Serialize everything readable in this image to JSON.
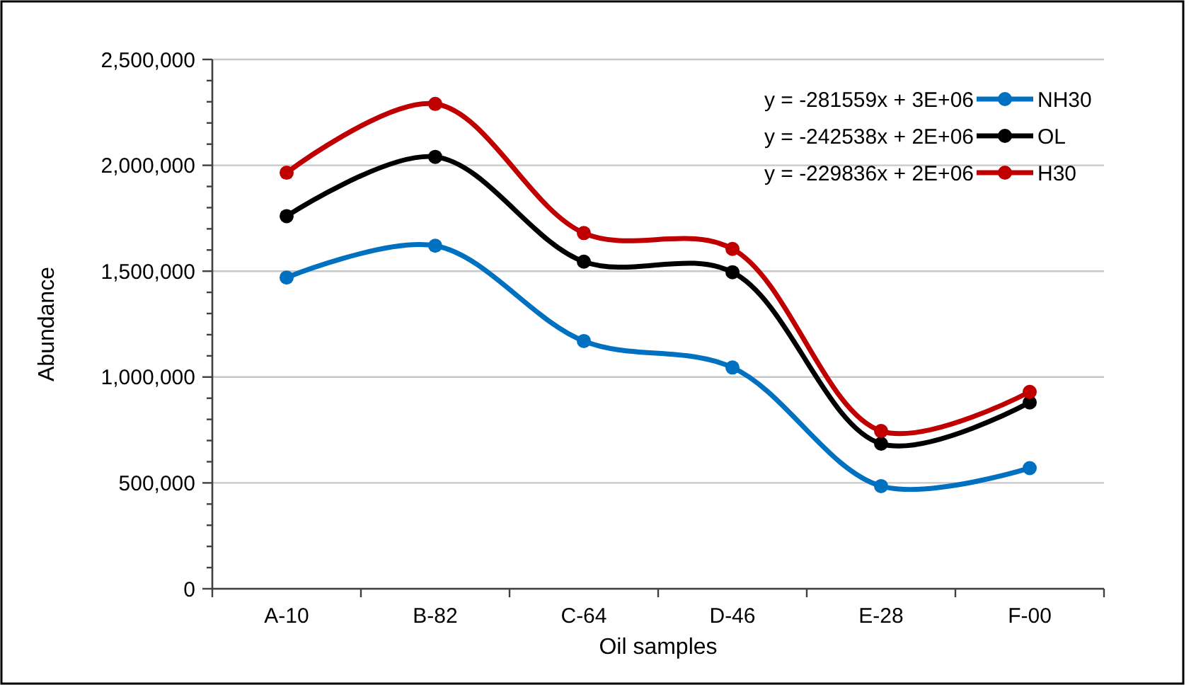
{
  "chart_data": {
    "type": "line",
    "xlabel": "Oil samples",
    "ylabel": "Abundance",
    "categories": [
      "A-10",
      "B-82",
      "C-64",
      "D-46",
      "E-28",
      "F-00"
    ],
    "series": [
      {
        "name": "NH30",
        "color": "#0070c0",
        "values": [
          1470000,
          1620000,
          1170000,
          1045000,
          485000,
          570000
        ]
      },
      {
        "name": "OL",
        "color": "#000000",
        "values": [
          1760000,
          2040000,
          1545000,
          1495000,
          685000,
          880000
        ]
      },
      {
        "name": "H30",
        "color": "#c00000",
        "values": [
          1965000,
          2290000,
          1680000,
          1605000,
          745000,
          930000
        ]
      }
    ],
    "annotations": [
      "y = -281559x + 3E+06",
      "y = -242538x + 2E+06",
      "y = -229836x + 2E+06"
    ],
    "ylim": [
      0,
      2500000
    ],
    "yticks": [
      {
        "value": 0,
        "label": "0"
      },
      {
        "value": 100000,
        "label": null
      },
      {
        "value": 200000,
        "label": null
      },
      {
        "value": 300000,
        "label": null
      },
      {
        "value": 400000,
        "label": null
      },
      {
        "value": 500000,
        "label": "500,000"
      },
      {
        "value": 600000,
        "label": null
      },
      {
        "value": 700000,
        "label": null
      },
      {
        "value": 800000,
        "label": null
      },
      {
        "value": 900000,
        "label": null
      },
      {
        "value": 1000000,
        "label": "1,000,000"
      },
      {
        "value": 1100000,
        "label": null
      },
      {
        "value": 1200000,
        "label": null
      },
      {
        "value": 1300000,
        "label": null
      },
      {
        "value": 1400000,
        "label": null
      },
      {
        "value": 1500000,
        "label": "1,500,000"
      },
      {
        "value": 1600000,
        "label": null
      },
      {
        "value": 1700000,
        "label": null
      },
      {
        "value": 1800000,
        "label": null
      },
      {
        "value": 1900000,
        "label": null
      },
      {
        "value": 2000000,
        "label": "2,000,000"
      },
      {
        "value": 2100000,
        "label": null
      },
      {
        "value": 2200000,
        "label": null
      },
      {
        "value": 2300000,
        "label": null
      },
      {
        "value": 2400000,
        "label": null
      },
      {
        "value": 2500000,
        "label": "2,500,000"
      }
    ],
    "grid": "y",
    "legend": "top right",
    "marker": "circle",
    "line_style": "solid"
  }
}
